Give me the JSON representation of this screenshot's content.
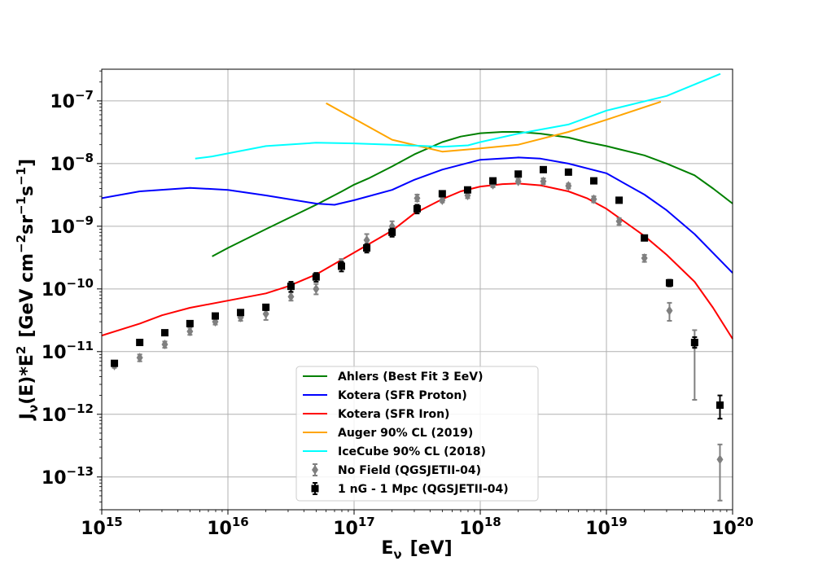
{
  "chart_data": {
    "type": "line",
    "title": "",
    "xlabel": "Eν  [eV]",
    "xlabel_parts": {
      "base": "E",
      "sub": "ν",
      "rest": "[eV]"
    },
    "ylabel": "Jν(E)*E²  [GeV cm⁻² sr⁻¹ s⁻¹]",
    "ylabel_parts": {
      "j": "J",
      "nu": "ν",
      "e": "(E)*E",
      "two": "2",
      "open": "[GeV cm",
      "m2": "−2",
      "sr": "sr",
      "m1": "−1",
      "s": "s",
      "m1b": "−1",
      "close": "]"
    },
    "xscale": "log",
    "yscale": "log",
    "xlim": [
      1000000000000000.0,
      1e+20
    ],
    "ylim": [
      3e-14,
      3.2e-07
    ],
    "grid": true,
    "legend_position": "lower-center",
    "x_ticks": [
      {
        "value": 1000000000000000.0,
        "base": "10",
        "exp": "15"
      },
      {
        "value": 1e+16,
        "base": "10",
        "exp": "16"
      },
      {
        "value": 1e+17,
        "base": "10",
        "exp": "17"
      },
      {
        "value": 1e+18,
        "base": "10",
        "exp": "18"
      },
      {
        "value": 1e+19,
        "base": "10",
        "exp": "19"
      },
      {
        "value": 1e+20,
        "base": "10",
        "exp": "20"
      }
    ],
    "y_ticks": [
      {
        "value": 1e-13,
        "base": "10",
        "exp": "−13"
      },
      {
        "value": 1e-12,
        "base": "10",
        "exp": "−12"
      },
      {
        "value": 1e-11,
        "base": "10",
        "exp": "−11"
      },
      {
        "value": 1e-10,
        "base": "10",
        "exp": "−10"
      },
      {
        "value": 1e-09,
        "base": "10",
        "exp": "−9"
      },
      {
        "value": 1e-08,
        "base": "10",
        "exp": "−8"
      },
      {
        "value": 1e-07,
        "base": "10",
        "exp": "−7"
      }
    ],
    "series": [
      {
        "name": "Ahlers (Best Fit 3 EeV)",
        "type": "line",
        "color": "#008000",
        "x": [
          7500000000000000.0,
          1e+16,
          2e+16,
          5e+16,
          8e+16,
          1e+17,
          1.3e+17,
          2e+17,
          3e+17,
          5e+17,
          7e+17,
          1e+18,
          1.5e+18,
          2e+18,
          3e+18,
          5e+18,
          7e+18,
          1e+19,
          2e+19,
          3e+19,
          5e+19,
          7e+19,
          1e+20
        ],
        "y": [
          3.3e-10,
          4.5e-10,
          9e-10,
          2.2e-09,
          3.6e-09,
          4.6e-09,
          5.8e-09,
          9e-09,
          1.4e-08,
          2.2e-08,
          2.7e-08,
          3.05e-08,
          3.2e-08,
          3.2e-08,
          3e-08,
          2.6e-08,
          2.2e-08,
          1.9e-08,
          1.35e-08,
          1e-08,
          6.5e-09,
          4e-09,
          2.3e-09
        ]
      },
      {
        "name": "Kotera (SFR Proton)",
        "type": "line",
        "color": "#0000ff",
        "x": [
          1000000000000000.0,
          2000000000000000.0,
          5000000000000000.0,
          1e+16,
          2e+16,
          5e+16,
          7e+16,
          1e+17,
          2e+17,
          3e+17,
          5e+17,
          1e+18,
          2e+18,
          3e+18,
          5e+18,
          1e+19,
          2e+19,
          3e+19,
          5e+19,
          1e+20
        ],
        "y": [
          2.8e-09,
          3.6e-09,
          4.1e-09,
          3.8e-09,
          3.1e-09,
          2.3e-09,
          2.2e-09,
          2.6e-09,
          3.8e-09,
          5.5e-09,
          8e-09,
          1.15e-08,
          1.25e-08,
          1.2e-08,
          1e-08,
          7e-09,
          3.2e-09,
          1.8e-09,
          7.5e-10,
          1.8e-10
        ]
      },
      {
        "name": "Kotera (SFR Iron)",
        "type": "line",
        "color": "#ff0000",
        "x": [
          1000000000000000.0,
          2000000000000000.0,
          3000000000000000.0,
          5000000000000000.0,
          1e+16,
          2e+16,
          3e+16,
          5e+16,
          1e+17,
          2e+17,
          3e+17,
          5e+17,
          7e+17,
          1e+18,
          1.5e+18,
          2e+18,
          3e+18,
          5e+18,
          7e+18,
          1e+19,
          2e+19,
          3e+19,
          5e+19,
          7e+19,
          1e+20
        ],
        "y": [
          1.8e-11,
          2.8e-11,
          3.8e-11,
          5e-11,
          6.5e-11,
          8.5e-11,
          1.1e-10,
          1.7e-10,
          3.8e-10,
          8.5e-10,
          1.6e-09,
          2.7e-09,
          3.6e-09,
          4.3e-09,
          4.7e-09,
          4.8e-09,
          4.5e-09,
          3.6e-09,
          2.8e-09,
          1.9e-09,
          7e-10,
          3.5e-10,
          1.3e-10,
          5e-11,
          1.6e-11
        ]
      },
      {
        "name": "Auger 90% CL (2019)",
        "type": "line",
        "color": "#ffa500",
        "x": [
          6e+16,
          1e+17,
          2e+17,
          5e+17,
          1e+18,
          2e+18,
          5e+18,
          1e+19,
          2.7e+19
        ],
        "y": [
          9.2e-08,
          5.2e-08,
          2.4e-08,
          1.55e-08,
          1.75e-08,
          2e-08,
          3.2e-08,
          5e-08,
          9.7e-08
        ]
      },
      {
        "name": "IceCube 90% CL (2018)",
        "type": "line",
        "color": "#00ffff",
        "x": [
          5500000000000000.0,
          7500000000000000.0,
          1e+16,
          2e+16,
          5e+16,
          1e+17,
          2e+17,
          5e+17,
          8e+17,
          1e+18,
          2e+18,
          5e+18,
          1e+19,
          3e+19,
          8e+19
        ],
        "y": [
          1.2e-08,
          1.3e-08,
          1.45e-08,
          1.9e-08,
          2.15e-08,
          2.1e-08,
          2e-08,
          1.85e-08,
          1.95e-08,
          2.2e-08,
          3e-08,
          4.2e-08,
          7e-08,
          1.2e-07,
          2.7e-07
        ]
      },
      {
        "name": "No Field (QGSJETII-04)",
        "type": "errorbar",
        "color": "#808080",
        "marker": "diamond",
        "x": [
          1260000000000000.0,
          2000000000000000.0,
          3160000000000000.0,
          5000000000000000.0,
          7940000000000000.0,
          1.26e+16,
          2e+16,
          3.16e+16,
          5e+16,
          7.94e+16,
          1.26e+17,
          2e+17,
          3.16e+17,
          5e+17,
          7.94e+17,
          1.26e+18,
          2e+18,
          3.16e+18,
          5e+18,
          7.94e+18,
          1.26e+19,
          2e+19,
          3.16e+19,
          5e+19,
          7.94e+19
        ],
        "y": [
          6e-12,
          8e-12,
          1.3e-11,
          2.1e-11,
          3e-11,
          3.5e-11,
          4e-11,
          7.5e-11,
          1e-10,
          2.6e-10,
          6e-10,
          1e-09,
          2.8e-09,
          2.6e-09,
          3.1e-09,
          4.6e-09,
          5.2e-09,
          5.2e-09,
          4.4e-09,
          2.7e-09,
          1.2e-09,
          3.1e-10,
          4.5e-11,
          1.25e-11,
          1.9e-13
        ],
        "yerr_low": [
          5.5e-12,
          7e-12,
          1.15e-11,
          1.85e-11,
          2.7e-11,
          3.1e-11,
          3.2e-11,
          6.5e-11,
          8.2e-11,
          2.2e-10,
          5e-10,
          8.7e-10,
          2.5e-09,
          2.4e-09,
          2.8e-09,
          4.2e-09,
          4.8e-09,
          4.7e-09,
          4e-09,
          2.4e-09,
          1.05e-09,
          2.7e-10,
          3.1e-11,
          1.7e-12,
          4.2e-14
        ],
        "yerr_high": [
          6.6e-12,
          9e-12,
          1.45e-11,
          2.4e-11,
          3.3e-11,
          3.9e-11,
          5e-11,
          8.8e-11,
          1.2e-10,
          3e-10,
          7.5e-10,
          1.2e-09,
          3.2e-09,
          2.9e-09,
          3.5e-09,
          5e-09,
          5.7e-09,
          5.8e-09,
          4.8e-09,
          3e-09,
          1.35e-09,
          3.5e-10,
          6e-11,
          2.2e-11,
          3.3e-13
        ]
      },
      {
        "name": "1 nG - 1 Mpc (QGSJETII-04)",
        "type": "errorbar",
        "color": "#000000",
        "marker": "square",
        "x": [
          1260000000000000.0,
          2000000000000000.0,
          3160000000000000.0,
          5000000000000000.0,
          7940000000000000.0,
          1.26e+16,
          2e+16,
          3.16e+16,
          5e+16,
          7.94e+16,
          1.26e+17,
          2e+17,
          3.16e+17,
          5e+17,
          7.94e+17,
          1.26e+18,
          2e+18,
          3.16e+18,
          5e+18,
          7.94e+18,
          1.26e+19,
          2e+19,
          3.16e+19,
          5e+19,
          7.94e+19
        ],
        "y": [
          6.5e-12,
          1.4e-11,
          2e-11,
          2.8e-11,
          3.7e-11,
          4.2e-11,
          5.1e-11,
          1.1e-10,
          1.55e-10,
          2.3e-10,
          4.5e-10,
          8e-10,
          1.9e-09,
          3.3e-09,
          3.8e-09,
          5.3e-09,
          6.8e-09,
          8e-09,
          7.3e-09,
          5.3e-09,
          2.6e-09,
          6.5e-10,
          1.25e-10,
          1.4e-11,
          1.4e-12
        ],
        "yerr_low": [
          6e-12,
          1.3e-11,
          1.85e-11,
          2.6e-11,
          3.4e-11,
          3.9e-11,
          4.6e-11,
          9e-11,
          1.3e-10,
          1.9e-10,
          3.8e-10,
          6.8e-10,
          1.6e-09,
          3.1e-09,
          3.5e-09,
          5e-09,
          6.4e-09,
          7.6e-09,
          6.9e-09,
          5e-09,
          2.45e-09,
          6e-10,
          1.1e-10,
          1.15e-11,
          8.5e-13
        ],
        "yerr_high": [
          7e-12,
          1.5e-11,
          2.15e-11,
          3e-11,
          4e-11,
          4.5e-11,
          5.6e-11,
          1.3e-10,
          1.8e-10,
          2.7e-10,
          5.2e-10,
          9.2e-10,
          2.2e-09,
          3.5e-09,
          4.1e-09,
          5.6e-09,
          7.2e-09,
          8.4e-09,
          7.7e-09,
          5.6e-09,
          2.75e-09,
          7e-10,
          1.4e-10,
          1.7e-11,
          2e-12
        ]
      }
    ]
  }
}
